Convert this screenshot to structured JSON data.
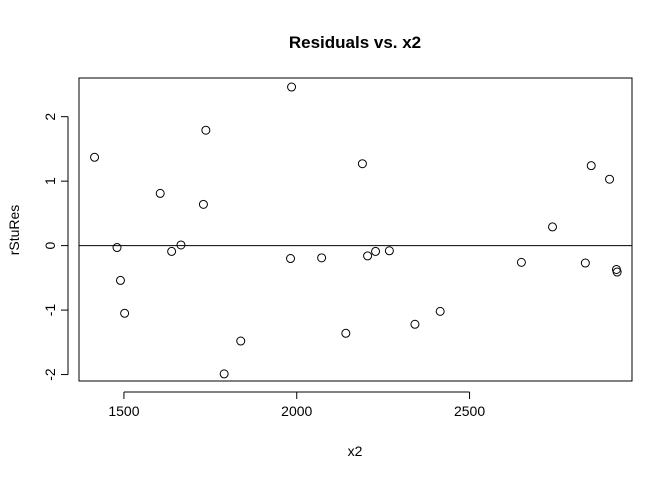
{
  "chart_data": {
    "type": "scatter",
    "title": "Residuals vs. x2",
    "xlabel": "x2",
    "ylabel": "rStuRes",
    "xlim": [
      1370,
      2970
    ],
    "ylim": [
      -2.1,
      2.6
    ],
    "xticks": [
      1500,
      2000,
      2500
    ],
    "yticks": [
      -2,
      -1,
      0,
      1,
      2
    ],
    "xtick_labels": [
      "1500",
      "2000",
      "2500"
    ],
    "ytick_labels": [
      "-2",
      "-1",
      "0",
      "1",
      "2"
    ],
    "reference_line_y": 0,
    "marker": "open-circle",
    "grid": false,
    "points": [
      {
        "x": 1415,
        "y": 1.37
      },
      {
        "x": 1480,
        "y": -0.03
      },
      {
        "x": 1490,
        "y": -0.54
      },
      {
        "x": 1502,
        "y": -1.05
      },
      {
        "x": 1605,
        "y": 0.81
      },
      {
        "x": 1638,
        "y": -0.09
      },
      {
        "x": 1665,
        "y": 0.01
      },
      {
        "x": 1730,
        "y": 0.64
      },
      {
        "x": 1737,
        "y": 1.79
      },
      {
        "x": 1790,
        "y": -1.99
      },
      {
        "x": 1838,
        "y": -1.48
      },
      {
        "x": 1982,
        "y": -0.2
      },
      {
        "x": 1985,
        "y": 2.46
      },
      {
        "x": 2072,
        "y": -0.19
      },
      {
        "x": 2142,
        "y": -1.36
      },
      {
        "x": 2190,
        "y": 1.27
      },
      {
        "x": 2205,
        "y": -0.16
      },
      {
        "x": 2228,
        "y": -0.09
      },
      {
        "x": 2268,
        "y": -0.08
      },
      {
        "x": 2342,
        "y": -1.22
      },
      {
        "x": 2415,
        "y": -1.02
      },
      {
        "x": 2650,
        "y": -0.26
      },
      {
        "x": 2740,
        "y": 0.29
      },
      {
        "x": 2835,
        "y": -0.27
      },
      {
        "x": 2852,
        "y": 1.24
      },
      {
        "x": 2905,
        "y": 1.03
      },
      {
        "x": 2925,
        "y": -0.37
      },
      {
        "x": 2927,
        "y": -0.41
      }
    ]
  }
}
